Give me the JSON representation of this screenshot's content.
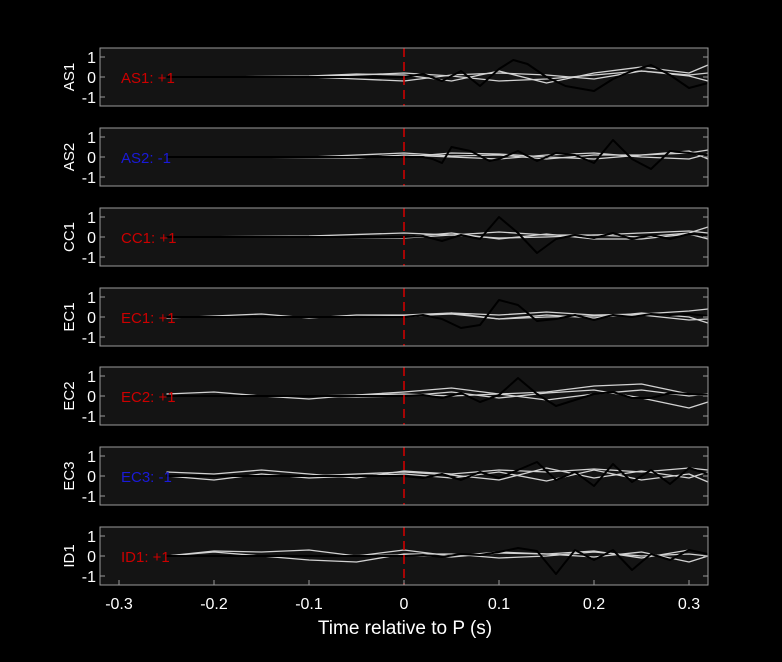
{
  "chart_data": {
    "type": "line",
    "xlabel": "Time relative to P (s)",
    "xlim": [
      -0.32,
      0.32
    ],
    "xticks": [
      -0.3,
      -0.2,
      -0.1,
      0,
      0.1,
      0.2,
      0.3
    ],
    "xtick_labels": [
      "-0.3",
      "-0.2",
      "-0.1",
      "0",
      "0.1",
      "0.2",
      "0.3"
    ],
    "ylim": [
      -1.45,
      1.45
    ],
    "yticks": [
      1,
      0,
      -1
    ],
    "ytick_labels": [
      "1",
      "0",
      "-1"
    ],
    "marker_x": 0,
    "colors": {
      "background": "#000000",
      "panel": "#141414",
      "frame": "#9a9a9a",
      "text": "#ffffff",
      "gray_traces": "#d2d2d2",
      "main_trace": "#000000",
      "marker": "#cc0000",
      "positive": "#cc0000",
      "negative": "#1a1ad8"
    },
    "panels": [
      {
        "station": "AS1",
        "label": "AS1: +1",
        "polarity": "+",
        "main": {
          "x": [
            -0.25,
            -0.2,
            -0.15,
            -0.1,
            -0.05,
            -0.02,
            0,
            0.02,
            0.04,
            0.06,
            0.08,
            0.1,
            0.115,
            0.13,
            0.15,
            0.17,
            0.2,
            0.22,
            0.24,
            0.26,
            0.28,
            0.3,
            0.32
          ],
          "y": [
            0,
            0,
            0,
            0,
            0,
            0,
            0,
            0.15,
            -0.2,
            0.3,
            -0.45,
            0.4,
            0.85,
            0.65,
            0,
            -0.45,
            -0.7,
            -0.1,
            0.3,
            0.6,
            0.1,
            -0.55,
            -0.3
          ]
        },
        "gray": [
          {
            "x": [
              -0.25,
              -0.2,
              -0.1,
              -0.05,
              0,
              0.05,
              0.1,
              0.15,
              0.2,
              0.25,
              0.3,
              0.32
            ],
            "y": [
              0,
              0,
              0.05,
              0.15,
              0.1,
              -0.2,
              0.3,
              -0.3,
              0.2,
              0.5,
              0.2,
              0.6
            ]
          },
          {
            "x": [
              -0.2,
              -0.1,
              -0.05,
              0,
              0.05,
              0.1,
              0.15,
              0.2,
              0.25,
              0.3,
              0.32
            ],
            "y": [
              0,
              0,
              -0.1,
              -0.2,
              0.1,
              0.2,
              0.1,
              -0.1,
              0.3,
              0.1,
              0.2
            ]
          },
          {
            "x": [
              -0.1,
              0,
              0.05,
              0.1,
              0.15,
              0.2,
              0.25,
              0.3,
              0.32
            ],
            "y": [
              0,
              0.2,
              0.05,
              -0.2,
              -0.1,
              0.1,
              0.3,
              0.05,
              -0.2
            ]
          }
        ]
      },
      {
        "station": "AS2",
        "label": "AS2: -1",
        "polarity": "-",
        "main": {
          "x": [
            -0.25,
            -0.1,
            0,
            0.02,
            0.03,
            0.04,
            0.05,
            0.07,
            0.09,
            0.1,
            0.12,
            0.14,
            0.16,
            0.18,
            0.2,
            0.22,
            0.24,
            0.26,
            0.28,
            0.3,
            0.32
          ],
          "y": [
            0,
            0,
            0,
            0,
            -0.1,
            -0.3,
            0.5,
            0.3,
            -0.2,
            -0.1,
            0.3,
            -0.2,
            0.2,
            0.1,
            -0.3,
            0.85,
            -0.1,
            -0.6,
            0.3,
            0.2,
            0.1
          ]
        },
        "gray": [
          {
            "x": [
              -0.25,
              -0.1,
              -0.05,
              0,
              0.05,
              0.1,
              0.15,
              0.2,
              0.25,
              0.3,
              0.32
            ],
            "y": [
              0,
              0,
              0.1,
              0.2,
              0.05,
              0.1,
              -0.1,
              0.1,
              0.1,
              0.2,
              0.35
            ]
          },
          {
            "x": [
              -0.2,
              -0.05,
              0,
              0.05,
              0.1,
              0.15,
              0.2,
              0.25,
              0.3,
              0.32
            ],
            "y": [
              0,
              -0.05,
              0.1,
              0,
              -0.1,
              0.1,
              0.2,
              0,
              -0.1,
              0.15
            ]
          },
          {
            "x": [
              -0.1,
              0,
              0.05,
              0.1,
              0.15,
              0.2,
              0.25,
              0.3,
              0.32
            ],
            "y": [
              0,
              0,
              0.2,
              0.15,
              0,
              -0.1,
              0.1,
              0.3,
              -0.1
            ]
          }
        ]
      },
      {
        "station": "CC1",
        "label": "CC1: +1",
        "polarity": "+",
        "main": {
          "x": [
            -0.25,
            -0.1,
            0,
            0.02,
            0.04,
            0.06,
            0.08,
            0.1,
            0.12,
            0.14,
            0.16,
            0.18,
            0.2,
            0.22,
            0.24,
            0.26,
            0.28,
            0.3,
            0.32
          ],
          "y": [
            0,
            0,
            0,
            0.05,
            -0.2,
            0.1,
            -0.1,
            1,
            0.2,
            -0.8,
            -0.1,
            0.1,
            -0.05,
            0.2,
            -0.1,
            0.1,
            -0.1,
            0.15,
            0.1
          ]
        },
        "gray": [
          {
            "x": [
              -0.25,
              -0.1,
              0,
              0.05,
              0.1,
              0.15,
              0.2,
              0.25,
              0.3,
              0.32
            ],
            "y": [
              0,
              0.05,
              0.2,
              0.1,
              0.25,
              0.1,
              0.1,
              0.2,
              0.3,
              0.2
            ]
          },
          {
            "x": [
              -0.1,
              0,
              0.05,
              0.1,
              0.15,
              0.2,
              0.25,
              0.3,
              0.32
            ],
            "y": [
              0,
              -0.05,
              0.1,
              -0.05,
              0,
              0.1,
              0,
              0.2,
              0.5
            ]
          },
          {
            "x": [
              0,
              0.05,
              0.1,
              0.15,
              0.2,
              0.25,
              0.3,
              0.32
            ],
            "y": [
              0,
              0.2,
              -0.1,
              0.15,
              -0.1,
              -0.1,
              0.15,
              -0.1
            ]
          }
        ]
      },
      {
        "station": "EC1",
        "label": "EC1: +1",
        "polarity": "+",
        "main": {
          "x": [
            -0.25,
            -0.1,
            0,
            0.02,
            0.04,
            0.06,
            0.08,
            0.1,
            0.12,
            0.14,
            0.16,
            0.18,
            0.2,
            0.22,
            0.24,
            0.26,
            0.28,
            0.3,
            0.32
          ],
          "y": [
            0,
            0,
            0,
            0.1,
            -0.1,
            -0.55,
            -0.4,
            0.85,
            0.6,
            -0.2,
            -0.1,
            0.1,
            -0.15,
            0.1,
            0,
            0.15,
            0.1,
            0.15,
            0.05
          ]
        },
        "gray": [
          {
            "x": [
              -0.25,
              -0.2,
              -0.15,
              -0.1,
              -0.05,
              0,
              0.05,
              0.1,
              0.15,
              0.2,
              0.25,
              0.3,
              0.32
            ],
            "y": [
              -0.05,
              0.05,
              0.15,
              -0.05,
              0.1,
              0.1,
              0.2,
              0.1,
              0.25,
              0.1,
              0.15,
              0.3,
              0.4
            ]
          },
          {
            "x": [
              -0.1,
              0,
              0.05,
              0.1,
              0.15,
              0.2,
              0.25,
              0.3,
              0.32
            ],
            "y": [
              0,
              0.05,
              0.15,
              -0.1,
              0,
              0.05,
              0.1,
              -0.15,
              -0.1
            ]
          },
          {
            "x": [
              0,
              0.05,
              0.1,
              0.15,
              0.2,
              0.25,
              0.3,
              0.32
            ],
            "y": [
              0,
              0.2,
              -0.1,
              0.1,
              -0.05,
              0.2,
              0,
              -0.3
            ]
          }
        ]
      },
      {
        "station": "EC2",
        "label": "EC2: +1",
        "polarity": "+",
        "main": {
          "x": [
            -0.25,
            -0.1,
            0,
            0.02,
            0.04,
            0.06,
            0.08,
            0.1,
            0.12,
            0.14,
            0.16,
            0.18,
            0.2,
            0.22,
            0.24,
            0.26,
            0.28,
            0.3,
            0.32
          ],
          "y": [
            0,
            0,
            0,
            0.05,
            -0.1,
            0.15,
            -0.3,
            0.05,
            0.9,
            0.1,
            -0.5,
            -0.2,
            0.1,
            0.2,
            -0.1,
            -0.1,
            0.15,
            0.1,
            0.05
          ]
        },
        "gray": [
          {
            "x": [
              -0.25,
              -0.2,
              -0.15,
              -0.1,
              -0.05,
              0,
              0.05,
              0.1,
              0.15,
              0.2,
              0.25,
              0.3,
              0.32
            ],
            "y": [
              0.1,
              0.2,
              0,
              -0.15,
              0.05,
              0.2,
              0.4,
              0.1,
              0.2,
              0.5,
              0.6,
              0.1,
              0
            ]
          },
          {
            "x": [
              -0.2,
              -0.1,
              -0.05,
              0,
              0.05,
              0.1,
              0.15,
              0.2,
              0.25,
              0.3,
              0.32
            ],
            "y": [
              0,
              0,
              -0.05,
              0,
              0.2,
              -0.1,
              0.15,
              0.3,
              -0.1,
              -0.6,
              -0.3
            ]
          },
          {
            "x": [
              -0.1,
              0,
              0.05,
              0.1,
              0.15,
              0.2,
              0.25,
              0.3,
              0.32
            ],
            "y": [
              0,
              0.1,
              0,
              0.1,
              -0.2,
              0.1,
              0.3,
              0,
              0.1
            ]
          }
        ]
      },
      {
        "station": "EC3",
        "label": "EC3: -1",
        "polarity": "-",
        "main": {
          "x": [
            -0.25,
            -0.1,
            0,
            0.02,
            0.04,
            0.06,
            0.08,
            0.1,
            0.12,
            0.14,
            0.16,
            0.18,
            0.2,
            0.22,
            0.24,
            0.26,
            0.28,
            0.3,
            0.32
          ],
          "y": [
            0,
            0,
            0,
            -0.1,
            0.1,
            -0.2,
            0.2,
            -0.1,
            0.3,
            0.7,
            -0.2,
            0.2,
            -0.5,
            0.6,
            -0.3,
            0.3,
            -0.4,
            0.4,
            0.1
          ]
        },
        "gray": [
          {
            "x": [
              -0.25,
              -0.2,
              -0.15,
              -0.1,
              -0.05,
              0,
              0.05,
              0.1,
              0.15,
              0.2,
              0.25,
              0.3,
              0.32
            ],
            "y": [
              0.2,
              0.1,
              0.3,
              0.1,
              -0.1,
              0.25,
              0.1,
              0.3,
              0.2,
              0.35,
              0.2,
              0.4,
              0.3
            ]
          },
          {
            "x": [
              -0.25,
              -0.2,
              -0.15,
              -0.1,
              -0.05,
              0,
              0.05,
              0.1,
              0.15,
              0.2,
              0.25,
              0.3,
              0.32
            ],
            "y": [
              0,
              -0.2,
              0.1,
              -0.1,
              0,
              0.1,
              -0.1,
              0.2,
              -0.25,
              0.3,
              -0.2,
              0.1,
              -0.3
            ]
          },
          {
            "x": [
              -0.1,
              0,
              0.05,
              0.1,
              0.15,
              0.2,
              0.25,
              0.3,
              0.32
            ],
            "y": [
              0,
              0.2,
              0.05,
              -0.2,
              0.4,
              -0.1,
              0.25,
              -0.1,
              0.2
            ]
          }
        ]
      },
      {
        "station": "ID1",
        "label": "ID1: +1",
        "polarity": "+",
        "main": {
          "x": [
            -0.25,
            -0.1,
            0,
            0.02,
            0.04,
            0.06,
            0.08,
            0.1,
            0.12,
            0.14,
            0.16,
            0.18,
            0.2,
            0.22,
            0.24,
            0.26,
            0.28,
            0.3,
            0.32
          ],
          "y": [
            0,
            0,
            0,
            0.05,
            -0.05,
            0.1,
            0.05,
            0.2,
            0.4,
            0.25,
            -0.9,
            0.3,
            -0.2,
            0.3,
            -0.7,
            0.1,
            -0.2,
            0.3,
            0.1
          ]
        },
        "gray": [
          {
            "x": [
              -0.25,
              -0.2,
              -0.15,
              -0.1,
              -0.05,
              0,
              0.05,
              0.1,
              0.15,
              0.2,
              0.25,
              0.3,
              0.32
            ],
            "y": [
              0,
              0.25,
              0.2,
              0.3,
              0,
              0.3,
              0,
              0.2,
              0.1,
              0.25,
              -0.1,
              0.3,
              0.1
            ]
          },
          {
            "x": [
              -0.25,
              -0.2,
              -0.15,
              -0.1,
              -0.05,
              0,
              0.05,
              0.1,
              0.15,
              0.2,
              0.25,
              0.3,
              0.32
            ],
            "y": [
              0,
              0.2,
              0,
              -0.2,
              -0.3,
              0.1,
              0.1,
              -0.1,
              0,
              0.2,
              0,
              0.1,
              0
            ]
          },
          {
            "x": [
              -0.1,
              0,
              0.05,
              0.1,
              0.15,
              0.2,
              0.25,
              0.3,
              0.32
            ],
            "y": [
              0,
              0.05,
              -0.05,
              0.15,
              0.1,
              -0.05,
              0.2,
              -0.3,
              0
            ]
          }
        ]
      }
    ]
  }
}
